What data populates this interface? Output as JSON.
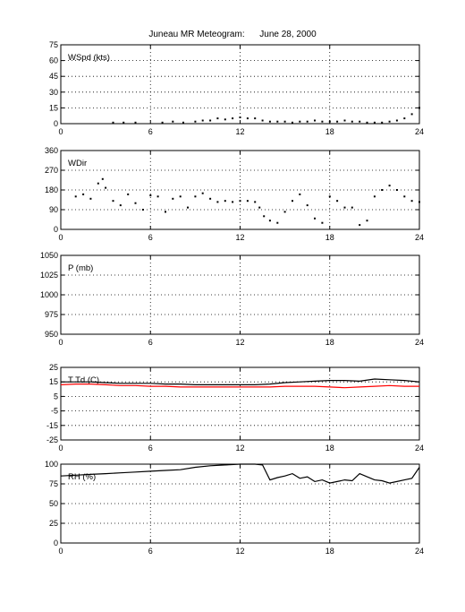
{
  "title": "Juneau MR Meteogram:      June 28, 2000",
  "chart_data": [
    {
      "type": "scatter",
      "label": "WSpd (kts)",
      "xlim": [
        0,
        24
      ],
      "xticks": [
        0,
        6,
        12,
        18,
        24
      ],
      "ylim": [
        0,
        75
      ],
      "yticks": [
        0,
        15,
        30,
        45,
        60,
        75
      ],
      "grid": true,
      "series": [
        {
          "color": "#000000",
          "x": [
            3.5,
            4.2,
            5.0,
            6.8,
            7.5,
            8.2,
            9.0,
            9.5,
            10.0,
            10.5,
            11.0,
            11.5,
            12.0,
            12.5,
            13.0,
            13.5,
            14.0,
            14.5,
            15.0,
            15.5,
            16.0,
            16.5,
            17.0,
            17.5,
            18.0,
            18.5,
            19.0,
            19.5,
            20.0,
            20.5,
            21.0,
            21.5,
            22.0,
            22.5,
            23.0,
            23.5,
            24.0
          ],
          "y": [
            1,
            1,
            1,
            1,
            2,
            1,
            2,
            3,
            3,
            5,
            4,
            5,
            6,
            5,
            5,
            3,
            2,
            2,
            2,
            1,
            2,
            2,
            3,
            2,
            2,
            2,
            3,
            2,
            2,
            1,
            1,
            1,
            2,
            3,
            5,
            9,
            15
          ]
        }
      ]
    },
    {
      "type": "scatter",
      "label": "WDir",
      "xlim": [
        0,
        24
      ],
      "xticks": [
        0,
        6,
        12,
        18,
        24
      ],
      "ylim": [
        0,
        360
      ],
      "yticks": [
        0,
        90,
        180,
        270,
        360
      ],
      "grid": true,
      "series": [
        {
          "color": "#000000",
          "x": [
            1.0,
            1.5,
            2.0,
            2.5,
            2.8,
            3.0,
            3.5,
            4.0,
            4.5,
            5.0,
            5.5,
            6.0,
            6.5,
            7.0,
            7.5,
            8.0,
            8.5,
            9.0,
            9.5,
            10.0,
            10.5,
            11.0,
            11.5,
            12.0,
            12.5,
            13.0,
            13.3,
            13.6,
            14.0,
            14.5,
            15.0,
            15.5,
            16.0,
            16.5,
            17.0,
            17.5,
            18.0,
            18.5,
            19.0,
            19.5,
            20.0,
            20.5,
            21.0,
            21.5,
            22.0,
            22.5,
            23.0,
            23.5,
            24.0
          ],
          "y": [
            150,
            160,
            140,
            210,
            230,
            190,
            130,
            110,
            160,
            120,
            90,
            155,
            150,
            80,
            140,
            150,
            100,
            150,
            165,
            140,
            125,
            130,
            125,
            130,
            130,
            125,
            100,
            60,
            40,
            30,
            80,
            130,
            160,
            110,
            50,
            30,
            150,
            130,
            100,
            100,
            20,
            40,
            150,
            180,
            200,
            180,
            150,
            130,
            125
          ]
        }
      ]
    },
    {
      "type": "scatter",
      "label": "P (mb)",
      "xlim": [
        0,
        24
      ],
      "xticks": [
        0,
        6,
        12,
        18,
        24
      ],
      "ylim": [
        950,
        1050
      ],
      "yticks": [
        950,
        975,
        1000,
        1025,
        1050
      ],
      "grid": true,
      "series": []
    },
    {
      "type": "line",
      "label": "T Td (C)",
      "xlim": [
        0,
        24
      ],
      "xticks": [
        0,
        6,
        12,
        18,
        24
      ],
      "ylim": [
        -25,
        25
      ],
      "yticks": [
        -25,
        -15,
        -5,
        5,
        15,
        25
      ],
      "grid": true,
      "series": [
        {
          "color": "#000000",
          "x": [
            0,
            1,
            2,
            3,
            4,
            5,
            6,
            7,
            8,
            9,
            10,
            11,
            12,
            13,
            14,
            15,
            16,
            17,
            18,
            19,
            20,
            21,
            22,
            23,
            24
          ],
          "y": [
            15,
            15,
            15,
            14.5,
            14,
            14,
            14,
            13.5,
            13.5,
            13,
            13,
            13,
            13,
            13,
            13.5,
            14.5,
            15,
            15.5,
            16,
            16,
            15.5,
            17,
            16.5,
            16,
            15
          ]
        },
        {
          "color": "#ff0000",
          "x": [
            0,
            1,
            2,
            3,
            4,
            5,
            6,
            7,
            8,
            9,
            10,
            11,
            12,
            13,
            14,
            15,
            16,
            17,
            18,
            19,
            20,
            21,
            22,
            23,
            24
          ],
          "y": [
            13,
            13.5,
            13.5,
            13,
            12.5,
            12.5,
            12,
            12,
            11.5,
            11.5,
            11.5,
            11.5,
            11.5,
            11.5,
            11.5,
            12,
            12,
            12,
            11.5,
            11,
            11.5,
            12,
            12.5,
            12,
            12
          ]
        }
      ]
    },
    {
      "type": "line",
      "label": "RH (%)",
      "xlim": [
        0,
        24
      ],
      "xticks": [
        0,
        6,
        12,
        18,
        24
      ],
      "ylim": [
        0,
        100
      ],
      "yticks": [
        0,
        25,
        50,
        75,
        100
      ],
      "grid": true,
      "series": [
        {
          "color": "#000000",
          "x": [
            0,
            1,
            2,
            3,
            4,
            5,
            6,
            7,
            8,
            9,
            10,
            11,
            12,
            13,
            13.5,
            14,
            14.5,
            15,
            15.5,
            16,
            16.5,
            17,
            17.5,
            18,
            18.5,
            19,
            19.5,
            20,
            20.5,
            21,
            21.5,
            22,
            22.5,
            23,
            23.5,
            24
          ],
          "y": [
            85,
            86,
            87,
            88,
            89,
            90,
            91,
            92,
            93,
            96,
            98,
            99,
            100,
            100,
            99,
            80,
            83,
            85,
            88,
            82,
            84,
            78,
            80,
            76,
            78,
            80,
            79,
            88,
            84,
            80,
            79,
            76,
            78,
            80,
            82,
            96
          ]
        }
      ]
    }
  ]
}
